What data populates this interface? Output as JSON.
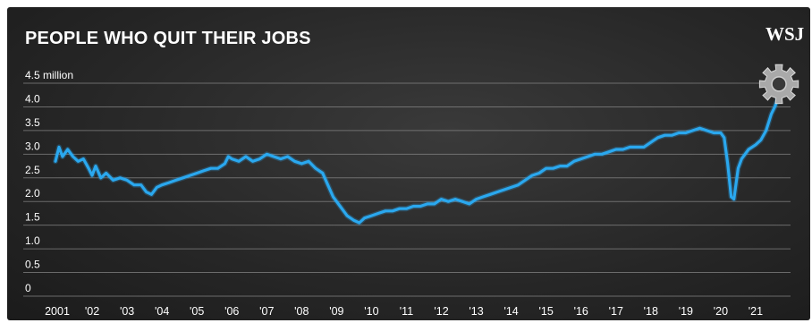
{
  "title": "PEOPLE WHO QUIT THEIR JOBS",
  "brand": "WSJ",
  "colors": {
    "background": "#2b2b2b",
    "line": "#2aa8ef",
    "grid": "#8a8a8a",
    "text": "#ffffff"
  },
  "icons": {
    "marker": "gear-icon"
  },
  "chart_data": {
    "type": "line",
    "title": "PEOPLE WHO QUIT THEIR JOBS",
    "ylabel": "",
    "xlabel": "",
    "ylim": [
      0,
      4.5
    ],
    "xlim": [
      2001,
      2022
    ],
    "y_ticks": [
      "0",
      "0.5",
      "1.0",
      "1.5",
      "2.0",
      "2.5",
      "3.0",
      "3.5",
      "4.0",
      "4.5 million"
    ],
    "x_ticks": [
      "2001",
      "'02",
      "'03",
      "'04",
      "'05",
      "'06",
      "'07",
      "'08",
      "'09",
      "'10",
      "'11",
      "'12",
      "'13",
      "'14",
      "'15",
      "'16",
      "'17",
      "'18",
      "'19",
      "'20",
      "'21"
    ],
    "grid": true,
    "series": [
      {
        "values": [
          [
            2000.95,
            2.85
          ],
          [
            2001.05,
            3.15
          ],
          [
            2001.15,
            2.95
          ],
          [
            2001.3,
            3.1
          ],
          [
            2001.45,
            2.95
          ],
          [
            2001.6,
            2.85
          ],
          [
            2001.75,
            2.9
          ],
          [
            2001.9,
            2.7
          ],
          [
            2002.0,
            2.55
          ],
          [
            2002.1,
            2.75
          ],
          [
            2002.25,
            2.5
          ],
          [
            2002.4,
            2.6
          ],
          [
            2002.6,
            2.45
          ],
          [
            2002.8,
            2.5
          ],
          [
            2003.0,
            2.45
          ],
          [
            2003.2,
            2.35
          ],
          [
            2003.4,
            2.35
          ],
          [
            2003.55,
            2.2
          ],
          [
            2003.7,
            2.15
          ],
          [
            2003.85,
            2.3
          ],
          [
            2004.0,
            2.35
          ],
          [
            2004.2,
            2.4
          ],
          [
            2004.4,
            2.45
          ],
          [
            2004.6,
            2.5
          ],
          [
            2004.8,
            2.55
          ],
          [
            2005.0,
            2.6
          ],
          [
            2005.2,
            2.65
          ],
          [
            2005.4,
            2.7
          ],
          [
            2005.6,
            2.7
          ],
          [
            2005.8,
            2.8
          ],
          [
            2005.9,
            2.95
          ],
          [
            2006.0,
            2.9
          ],
          [
            2006.2,
            2.85
          ],
          [
            2006.4,
            2.95
          ],
          [
            2006.6,
            2.85
          ],
          [
            2006.8,
            2.9
          ],
          [
            2007.0,
            3.0
          ],
          [
            2007.2,
            2.95
          ],
          [
            2007.4,
            2.9
          ],
          [
            2007.6,
            2.95
          ],
          [
            2007.8,
            2.85
          ],
          [
            2008.0,
            2.8
          ],
          [
            2008.2,
            2.85
          ],
          [
            2008.4,
            2.7
          ],
          [
            2008.6,
            2.6
          ],
          [
            2008.75,
            2.35
          ],
          [
            2008.9,
            2.1
          ],
          [
            2009.1,
            1.9
          ],
          [
            2009.3,
            1.7
          ],
          [
            2009.5,
            1.6
          ],
          [
            2009.65,
            1.55
          ],
          [
            2009.8,
            1.65
          ],
          [
            2010.0,
            1.7
          ],
          [
            2010.2,
            1.75
          ],
          [
            2010.4,
            1.8
          ],
          [
            2010.6,
            1.8
          ],
          [
            2010.8,
            1.85
          ],
          [
            2011.0,
            1.85
          ],
          [
            2011.2,
            1.9
          ],
          [
            2011.4,
            1.9
          ],
          [
            2011.6,
            1.95
          ],
          [
            2011.8,
            1.95
          ],
          [
            2012.0,
            2.05
          ],
          [
            2012.2,
            2.0
          ],
          [
            2012.4,
            2.05
          ],
          [
            2012.6,
            2.0
          ],
          [
            2012.8,
            1.95
          ],
          [
            2013.0,
            2.05
          ],
          [
            2013.2,
            2.1
          ],
          [
            2013.4,
            2.15
          ],
          [
            2013.6,
            2.2
          ],
          [
            2013.8,
            2.25
          ],
          [
            2014.0,
            2.3
          ],
          [
            2014.2,
            2.35
          ],
          [
            2014.4,
            2.45
          ],
          [
            2014.6,
            2.55
          ],
          [
            2014.8,
            2.6
          ],
          [
            2015.0,
            2.7
          ],
          [
            2015.2,
            2.7
          ],
          [
            2015.4,
            2.75
          ],
          [
            2015.6,
            2.75
          ],
          [
            2015.8,
            2.85
          ],
          [
            2016.0,
            2.9
          ],
          [
            2016.2,
            2.95
          ],
          [
            2016.4,
            3.0
          ],
          [
            2016.6,
            3.0
          ],
          [
            2016.8,
            3.05
          ],
          [
            2017.0,
            3.1
          ],
          [
            2017.2,
            3.1
          ],
          [
            2017.4,
            3.15
          ],
          [
            2017.6,
            3.15
          ],
          [
            2017.8,
            3.15
          ],
          [
            2018.0,
            3.25
          ],
          [
            2018.2,
            3.35
          ],
          [
            2018.4,
            3.4
          ],
          [
            2018.6,
            3.4
          ],
          [
            2018.8,
            3.45
          ],
          [
            2019.0,
            3.45
          ],
          [
            2019.2,
            3.5
          ],
          [
            2019.4,
            3.55
          ],
          [
            2019.6,
            3.5
          ],
          [
            2019.8,
            3.45
          ],
          [
            2020.0,
            3.45
          ],
          [
            2020.1,
            3.35
          ],
          [
            2020.2,
            2.8
          ],
          [
            2020.3,
            2.1
          ],
          [
            2020.38,
            2.05
          ],
          [
            2020.5,
            2.7
          ],
          [
            2020.6,
            2.9
          ],
          [
            2020.8,
            3.1
          ],
          [
            2021.0,
            3.2
          ],
          [
            2021.15,
            3.3
          ],
          [
            2021.3,
            3.5
          ],
          [
            2021.45,
            3.85
          ],
          [
            2021.55,
            4.0
          ],
          [
            2021.65,
            4.2
          ],
          [
            2021.72,
            4.35
          ]
        ]
      }
    ]
  }
}
